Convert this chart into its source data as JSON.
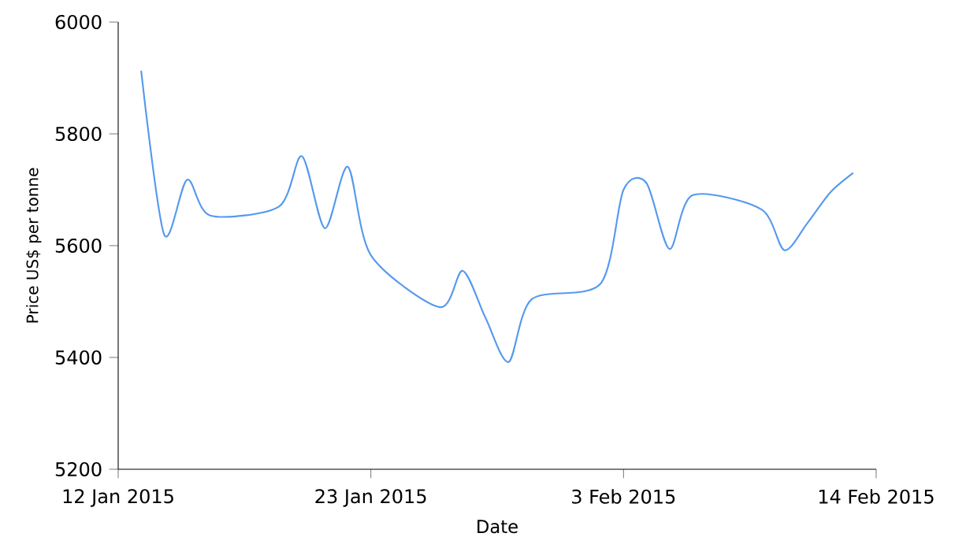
{
  "chart_data": {
    "type": "line",
    "xlabel": "Date",
    "ylabel": "Price US$ per tonne",
    "x": [
      "2015-01-13",
      "2015-01-14",
      "2015-01-15",
      "2015-01-16",
      "2015-01-19",
      "2015-01-20",
      "2015-01-21",
      "2015-01-22",
      "2015-01-23",
      "2015-01-26",
      "2015-01-27",
      "2015-01-28",
      "2015-01-29",
      "2015-01-30",
      "2015-02-02",
      "2015-02-03",
      "2015-02-04",
      "2015-02-05",
      "2015-02-06",
      "2015-02-09",
      "2015-02-10",
      "2015-02-11",
      "2015-02-12",
      "2015-02-13"
    ],
    "series": [
      {
        "color": "#5599ee",
        "values": [
          5913,
          5620,
          5718,
          5654,
          5670,
          5760,
          5631,
          5741,
          5583,
          5490,
          5555,
          5470,
          5392,
          5504,
          5532,
          5700,
          5712,
          5594,
          5690,
          5665,
          5592,
          5640,
          5695,
          5730
        ]
      }
    ],
    "xlim": [
      "2015-01-12",
      "2015-02-14"
    ],
    "xticks": [
      {
        "value": "2015-01-12",
        "label": "12 Jan 2015"
      },
      {
        "value": "2015-01-23",
        "label": "23 Jan 2015"
      },
      {
        "value": "2015-02-03",
        "label": "3 Feb 2015"
      },
      {
        "value": "2015-02-14",
        "label": "14 Feb 2015"
      }
    ],
    "ylim": [
      5200,
      6000
    ],
    "yticks": [
      5200,
      5400,
      5600,
      5800,
      6000
    ],
    "marker": "none",
    "line_style": "solid"
  }
}
